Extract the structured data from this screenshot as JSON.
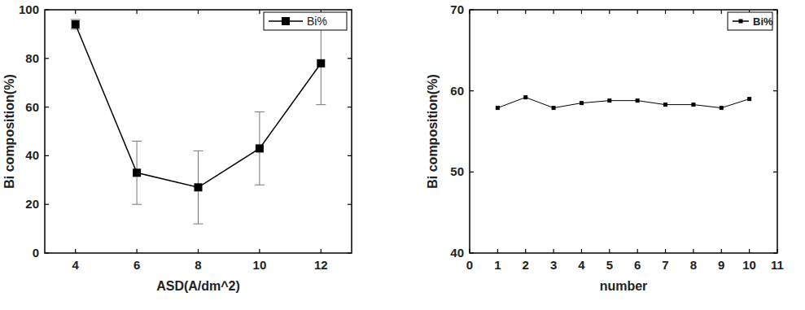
{
  "chart_data": [
    {
      "type": "line",
      "x_label": "ASD(A/dm^2)",
      "y_label": "Bi composition(%)",
      "x": [
        4,
        6,
        8,
        10,
        12
      ],
      "series": [
        {
          "name": "Bi%",
          "color": "#000000",
          "marker": "square",
          "line_style": "solid",
          "values": [
            94,
            33,
            27,
            43,
            78
          ],
          "errors": [
            2,
            13,
            15,
            15,
            17
          ]
        }
      ],
      "xlim": [
        3,
        13
      ],
      "xticks": [
        4,
        6,
        8,
        10,
        12
      ],
      "ylim": [
        0,
        100
      ],
      "yticks": [
        0,
        20,
        40,
        60,
        80,
        100
      ],
      "legend": "upper right"
    },
    {
      "type": "line",
      "x_label": "number",
      "y_label": "Bi composition(%)",
      "x": [
        1,
        2,
        3,
        4,
        5,
        6,
        7,
        8,
        9,
        10
      ],
      "series": [
        {
          "name": "Bi%",
          "color": "#000000",
          "marker": "square",
          "line_style": "solid",
          "values": [
            57.9,
            59.2,
            57.9,
            58.5,
            58.8,
            58.8,
            58.3,
            58.3,
            57.9,
            59.0
          ]
        }
      ],
      "xlim": [
        0,
        11
      ],
      "xticks": [
        0,
        1,
        2,
        3,
        4,
        5,
        6,
        7,
        8,
        9,
        10,
        11
      ],
      "ylim": [
        40,
        70
      ],
      "yticks": [
        40,
        50,
        60,
        70
      ],
      "legend": "upper right"
    }
  ]
}
